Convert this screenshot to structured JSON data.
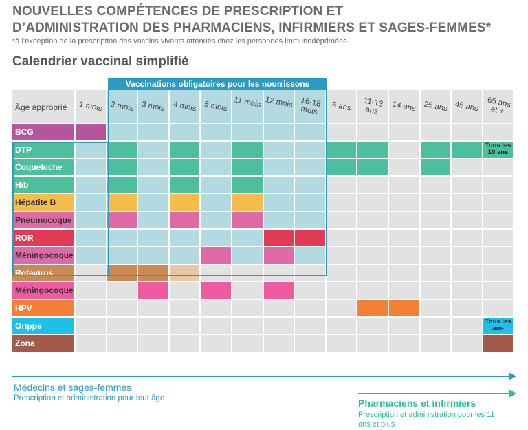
{
  "header": {
    "title_line1": "NOUVELLES COMPÉTENCES DE PRESCRIPTION  ET",
    "title_line2": "D’ADMINISTRATION DES PHARMACIENS, INFIRMIERS ET SAGES-FEMMES*",
    "footnote": "*à l’exception de la prescription des vaccins vivants atténués chez les personnes immunodéprimées.",
    "subtitle": "Calendrier vaccinal simplifié"
  },
  "table": {
    "corner_label": "Âge approprié",
    "mandatory_banner": "Vaccinations obligatoires pour les nourrissons",
    "ages": [
      "1 mois",
      "2 mois",
      "3 mois",
      "4 mois",
      "5 mois",
      "11 mois",
      "12 mois",
      "16-18 mois",
      "6 ans",
      "11-13 ans",
      "14 ans",
      "25 ans",
      "45 ans",
      "65 ans et +"
    ],
    "rows": [
      {
        "name": "BCG",
        "color": "#b5559e",
        "text_color": "#ffffff",
        "filled": [
          0
        ]
      },
      {
        "name": "DTP",
        "color": "#4cbf9d",
        "text_color": "#ffffff",
        "filled": [
          1,
          3,
          5,
          8,
          9,
          11,
          12
        ],
        "note_col": 13,
        "note": "Tous les 10 ans"
      },
      {
        "name": "Coqueluche",
        "color": "#4cbf9d",
        "text_color": "#ffffff",
        "filled": [
          1,
          3,
          5,
          8,
          9,
          11
        ]
      },
      {
        "name": "Hib",
        "color": "#4cbf9d",
        "text_color": "#ffffff",
        "filled": [
          1,
          3,
          5
        ]
      },
      {
        "name": "Hépatite B",
        "color": "#f6bd4c",
        "text_color": "#333333",
        "filled": [
          1,
          3,
          5
        ]
      },
      {
        "name": "Pneumocoque",
        "color": "#e06aa7",
        "text_color": "#333333",
        "filled": [
          1,
          3,
          5
        ]
      },
      {
        "name": "ROR",
        "color": "#e23a55",
        "text_color": "#ffffff",
        "filled": [
          6,
          7
        ]
      },
      {
        "name": "Méningocoque C",
        "color": "#e06aa7",
        "text_color": "#333333",
        "filled": [
          4,
          6
        ]
      },
      {
        "name": "Rotavirus",
        "color": "#c98a55",
        "text_color": "#ffffff",
        "filled": [
          1,
          2
        ],
        "light": [
          3
        ]
      },
      {
        "name": "Méningocoque B",
        "color": "#ef5aa0",
        "text_color": "#333333",
        "filled": [
          2,
          4,
          6
        ]
      },
      {
        "name": "HPV",
        "color": "#f47f37",
        "text_color": "#ffffff",
        "filled": [
          9,
          10
        ]
      },
      {
        "name": "Grippe",
        "color": "#1fbfe7",
        "text_color": "#ffffff",
        "filled": [],
        "note_col": 13,
        "note": "Tous les ans"
      },
      {
        "name": "Zona",
        "color": "#a35a4a",
        "text_color": "#ffffff",
        "filled": [
          13
        ]
      }
    ]
  },
  "footer": {
    "doctors_title": "Médecins et sages-femmes",
    "doctors_sub": "Prescription et administration pour tout âge",
    "pharm_title": "Pharmaciens et infirmiers",
    "pharm_sub": "Prescription et administration pour les 11 ans et plus"
  }
}
